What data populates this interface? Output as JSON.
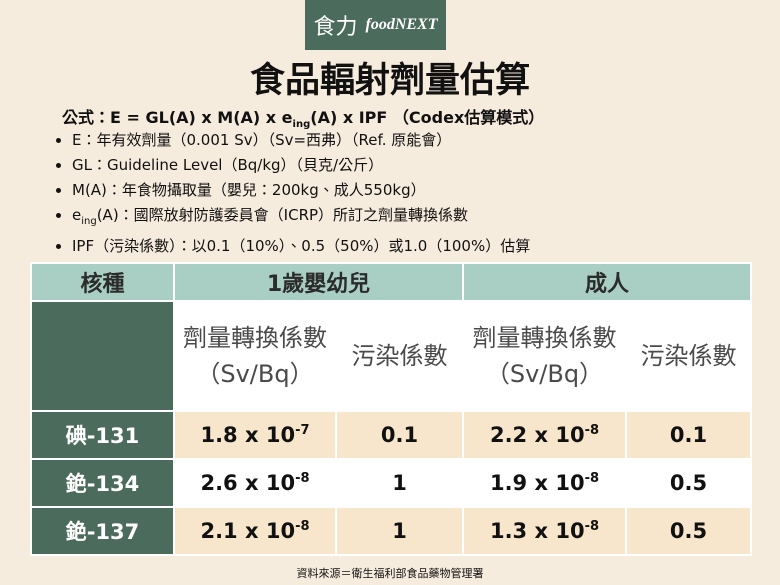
{
  "logo": {
    "brand_cn": "食力",
    "brand_en": "foodNEXT"
  },
  "title": "食品輻射劑量估算",
  "formula": {
    "label": "公式：",
    "before": "E = GL(A) x M(A) x e",
    "sub": "ing",
    "after": "(A) x IPF （Codex估算模式）"
  },
  "bullets": [
    {
      "text": "E：年有效劑量（0.001 Sv）（Sv=西弗）（Ref. 原能會）"
    },
    {
      "text": "GL：Guideline Level（Bq/kg）（貝克/公斤）"
    },
    {
      "text": "M(A)：年食物攝取量（嬰兒：200kg、成人550kg）"
    },
    {
      "prefix": "e",
      "sub": "ing",
      "text": "(A)：國際放射防護委員會（ICRP）所訂之劑量轉換係數"
    },
    {
      "text": "IPF（污染係數）：以0.1（10%）、0.5（50%）或1.0（100%）估算"
    }
  ],
  "table": {
    "header": {
      "nuclide": "核種",
      "infant": "1歲嬰幼兒",
      "adult": "成人"
    },
    "subheaders": [
      {
        "lines": [
          "劑量轉換係數",
          "（Sv/Bq）"
        ]
      },
      {
        "lines": [
          "污染係數"
        ]
      },
      {
        "lines": [
          "劑量轉換係數",
          "（Sv/Bq）"
        ]
      },
      {
        "lines": [
          "污染係數"
        ]
      }
    ],
    "rows": [
      {
        "nuclide": "碘-131",
        "infant_dcf": {
          "base": "1.8 x 10",
          "exp": "-7"
        },
        "infant_pf": "0.1",
        "adult_dcf": {
          "base": "2.2 x 10",
          "exp": "-8"
        },
        "adult_pf": "0.1"
      },
      {
        "nuclide": "銫-134",
        "infant_dcf": {
          "base": "2.6 x 10",
          "exp": "-8"
        },
        "infant_pf": "1",
        "adult_dcf": {
          "base": "1.9 x 10",
          "exp": "-8"
        },
        "adult_pf": "0.5"
      },
      {
        "nuclide": "銫-137",
        "infant_dcf": {
          "base": "2.1 x 10",
          "exp": "-8"
        },
        "infant_pf": "1",
        "adult_dcf": {
          "base": "1.3 x 10",
          "exp": "-8"
        },
        "adult_pf": "0.5"
      }
    ]
  },
  "source": "資料來源＝衛生福利部食品藥物管理署"
}
